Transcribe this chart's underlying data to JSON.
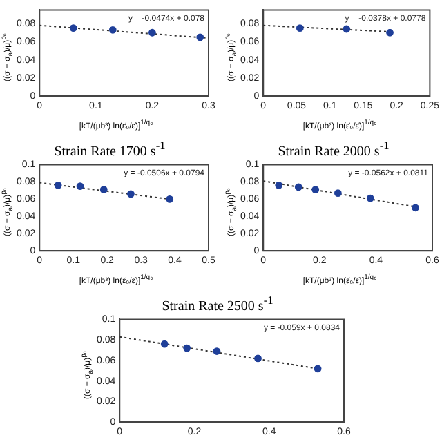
{
  "chart_data": [
    {
      "type": "scatter",
      "xlabel": "[kT/(μb³) ln(ε̇₀/ε̇)]$^{1/q₀}$",
      "ylabel": "((σ − σ$_{a}$)/μ)$^{p₀}$",
      "xlim": [
        0,
        0.3
      ],
      "xticks": [
        0,
        0.1,
        0.2,
        0.3
      ],
      "ylim": [
        0,
        0.095
      ],
      "yticks": [
        0,
        0.02,
        0.04,
        0.06,
        0.08
      ],
      "grid": false,
      "legend": false,
      "annotations": [
        "y = -0.0474x + 0.078"
      ],
      "series": [
        {
          "type": "scatter",
          "color": "#1f3f99",
          "marker": "circle",
          "x": [
            0.06,
            0.13,
            0.2,
            0.285
          ],
          "values": [
            0.075,
            0.073,
            0.07,
            0.065
          ]
        },
        {
          "type": "line",
          "color": "#333333",
          "line_style": "dotted",
          "marker": "none",
          "x": [
            0,
            0.3
          ],
          "values": [
            0.078,
            0.064
          ]
        }
      ]
    },
    {
      "type": "scatter",
      "xlabel": "[kT/(μb³) ln(ε̇₀/ε̇)]$^{1/q₀}$",
      "ylabel": "((σ − σ$_{a}$)/μ)$^{p₀}$",
      "xlim": [
        0,
        0.25
      ],
      "xticks": [
        0,
        0.05,
        0.1,
        0.15,
        0.2,
        0.25
      ],
      "ylim": [
        0,
        0.095
      ],
      "yticks": [
        0,
        0.02,
        0.04,
        0.06,
        0.08
      ],
      "grid": false,
      "legend": false,
      "annotations": [
        "y = -0.0378x + 0.0778"
      ],
      "series": [
        {
          "type": "scatter",
          "color": "#1f3f99",
          "marker": "circle",
          "x": [
            0.055,
            0.125,
            0.19
          ],
          "values": [
            0.075,
            0.074,
            0.07
          ]
        },
        {
          "type": "line",
          "color": "#333333",
          "line_style": "dotted",
          "marker": "none",
          "x": [
            0,
            0.19
          ],
          "values": [
            0.078,
            0.071
          ]
        }
      ]
    },
    {
      "type": "scatter",
      "title": "Strain Rate 1700 s$^{-1}$",
      "xlabel": "[kT/(μb³) ln(ε̇₀/ε̇)]$^{1/q₀}$",
      "ylabel": "((σ − σ$_{a}$)/μ)$^{p₀}$",
      "xlim": [
        0,
        0.5
      ],
      "xticks": [
        0,
        0.1,
        0.2,
        0.3,
        0.4,
        0.5
      ],
      "ylim": [
        0,
        0.1
      ],
      "yticks": [
        0,
        0.02,
        0.04,
        0.06,
        0.08,
        0.1
      ],
      "grid": false,
      "legend": false,
      "annotations": [
        "y = -0.0506x + 0.0794"
      ],
      "series": [
        {
          "type": "scatter",
          "color": "#1f3f99",
          "marker": "circle",
          "x": [
            0.055,
            0.12,
            0.19,
            0.27,
            0.385
          ],
          "values": [
            0.076,
            0.075,
            0.071,
            0.066,
            0.06
          ]
        },
        {
          "type": "line",
          "color": "#333333",
          "line_style": "dotted",
          "marker": "none",
          "x": [
            0,
            0.385
          ],
          "values": [
            0.079,
            0.06
          ]
        }
      ]
    },
    {
      "type": "scatter",
      "title": "Strain Rate 2000 s$^{-1}$",
      "xlabel": "[kT/(μb³) ln(ε̇₀/ε̇)]$^{1/q₀}$",
      "ylabel": "((σ − σ$_{a}$)/μ)$^{p₀}$",
      "xlim": [
        0,
        0.6
      ],
      "xticks": [
        0,
        0.2,
        0.4,
        0.6
      ],
      "ylim": [
        0,
        0.1
      ],
      "yticks": [
        0,
        0.02,
        0.04,
        0.06,
        0.08,
        0.1
      ],
      "grid": false,
      "legend": false,
      "annotations": [
        "y = -0.0562x + 0.0811"
      ],
      "series": [
        {
          "type": "scatter",
          "color": "#1f3f99",
          "marker": "circle",
          "x": [
            0.055,
            0.125,
            0.185,
            0.265,
            0.38,
            0.54
          ],
          "values": [
            0.076,
            0.074,
            0.071,
            0.067,
            0.061,
            0.05
          ]
        },
        {
          "type": "line",
          "color": "#333333",
          "line_style": "dotted",
          "marker": "none",
          "x": [
            0,
            0.54
          ],
          "values": [
            0.081,
            0.051
          ]
        }
      ]
    },
    {
      "type": "scatter",
      "title": "Strain Rate 2500 s$^{-1}$",
      "ylabel": "((σ − σ$_{a}$)/μ)$^{p₀}$",
      "xlim": [
        0,
        0.6
      ],
      "xticks": [
        0,
        0.2,
        0.4,
        0.6
      ],
      "ylim": [
        0,
        0.1
      ],
      "yticks": [
        0,
        0.02,
        0.04,
        0.06,
        0.08,
        0.1
      ],
      "grid": false,
      "legend": false,
      "annotations": [
        "y = -0.059x + 0.0834"
      ],
      "series": [
        {
          "type": "scatter",
          "color": "#1f3f99",
          "marker": "circle",
          "x": [
            0.12,
            0.18,
            0.26,
            0.37,
            0.53
          ],
          "values": [
            0.076,
            0.072,
            0.069,
            0.062,
            0.052
          ]
        },
        {
          "type": "line",
          "color": "#333333",
          "line_style": "dotted",
          "marker": "none",
          "x": [
            0,
            0.53
          ],
          "values": [
            0.083,
            0.052
          ]
        }
      ]
    }
  ]
}
